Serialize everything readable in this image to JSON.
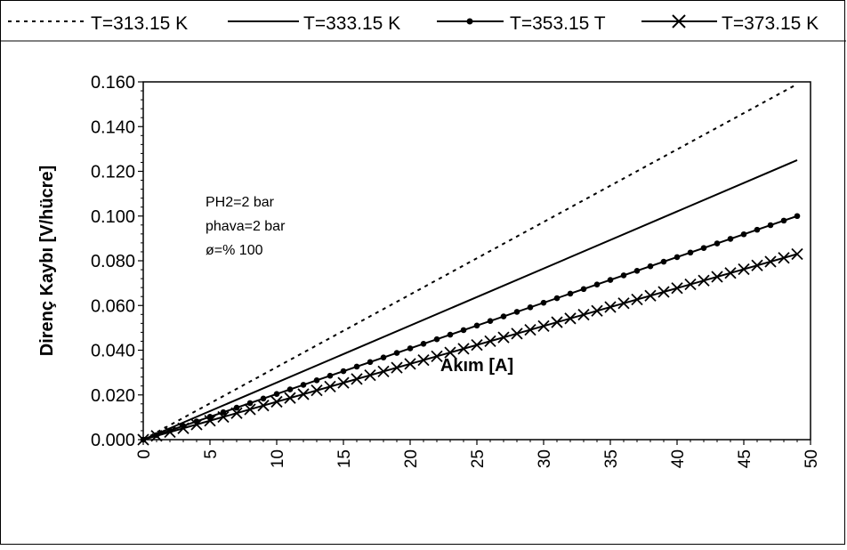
{
  "chart_data": {
    "type": "line",
    "xlabel": "Akım [A]",
    "ylabel": "Direnç Kaybı [V/hücre]",
    "x_ticks": [
      "0",
      "5",
      "10",
      "15",
      "20",
      "25",
      "30",
      "35",
      "40",
      "45",
      "50"
    ],
    "y_ticks": [
      "0.000",
      "0.020",
      "0.040",
      "0.060",
      "0.080",
      "0.100",
      "0.120",
      "0.140",
      "0.160"
    ],
    "xlim": [
      0,
      50
    ],
    "ylim": [
      0,
      0.16
    ],
    "grid": false,
    "legend_position": "top",
    "annotation": [
      "PH2=2 bar",
      "phava=2 bar",
      "ø=% 100"
    ],
    "series": [
      {
        "name": "T=313.15 K",
        "style": "dotted",
        "x": [
          0,
          49
        ],
        "y": [
          0,
          0.159
        ]
      },
      {
        "name": "T=333.15 K",
        "style": "solid",
        "x": [
          0,
          49
        ],
        "y": [
          0,
          0.125
        ]
      },
      {
        "name": "T=353.15 T",
        "style": "solid-dot",
        "x": [
          0,
          49
        ],
        "y": [
          0,
          0.1
        ]
      },
      {
        "name": "T=373.15 K",
        "style": "solid-x",
        "x": [
          0,
          49
        ],
        "y": [
          0,
          0.083
        ]
      }
    ]
  }
}
